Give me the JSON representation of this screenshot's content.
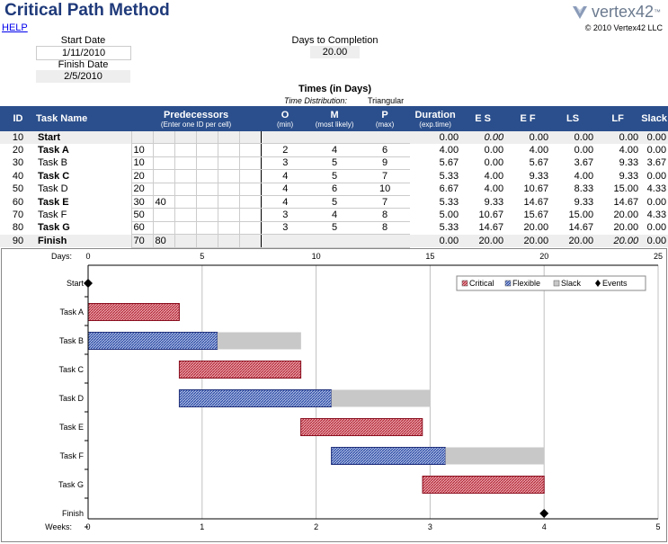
{
  "header": {
    "title": "Critical Path Method",
    "logo_text": "vertex42",
    "logo_tm": "™",
    "help": "HELP",
    "copyright": "© 2010 Vertex42 LLC"
  },
  "inputs": {
    "start_label": "Start Date",
    "start_value": "1/11/2010",
    "finish_label": "Finish Date",
    "finish_value": "2/5/2010",
    "days_label": "Days to Completion",
    "days_value": "20.00"
  },
  "times": {
    "title": "Times (in Days)",
    "dist_label": "Time Distribution:",
    "dist_value": "Triangular"
  },
  "columns": {
    "id": "ID",
    "task": "Task Name",
    "pred": "Predecessors",
    "pred_sub": "(Enter one ID per cell)",
    "o": "O",
    "o_sub": "(min)",
    "m": "M",
    "m_sub": "(most likely)",
    "p": "P",
    "p_sub": "(max)",
    "dur": "Duration",
    "dur_sub": "(exp.time)",
    "es": "E S",
    "ef": "E F",
    "ls": "LS",
    "lf": "LF",
    "slack": "Slack"
  },
  "rows": [
    {
      "id": "10",
      "name": "Start",
      "bold": true,
      "p1": "",
      "p2": "",
      "o": "",
      "m": "",
      "p": "",
      "dur": "0.00",
      "es": "0.00",
      "ef": "0.00",
      "ls": "0.00",
      "lf": "0.00",
      "slack": "0.00"
    },
    {
      "id": "20",
      "name": "Task A",
      "bold": true,
      "p1": "10",
      "p2": "",
      "o": "2",
      "m": "4",
      "p": "6",
      "dur": "4.00",
      "es": "0.00",
      "ef": "4.00",
      "ls": "0.00",
      "lf": "4.00",
      "slack": "0.00"
    },
    {
      "id": "30",
      "name": "Task B",
      "bold": false,
      "p1": "10",
      "p2": "",
      "o": "3",
      "m": "5",
      "p": "9",
      "dur": "5.67",
      "es": "0.00",
      "ef": "5.67",
      "ls": "3.67",
      "lf": "9.33",
      "slack": "3.67"
    },
    {
      "id": "40",
      "name": "Task C",
      "bold": true,
      "p1": "20",
      "p2": "",
      "o": "4",
      "m": "5",
      "p": "7",
      "dur": "5.33",
      "es": "4.00",
      "ef": "9.33",
      "ls": "4.00",
      "lf": "9.33",
      "slack": "0.00"
    },
    {
      "id": "50",
      "name": "Task D",
      "bold": false,
      "p1": "20",
      "p2": "",
      "o": "4",
      "m": "6",
      "p": "10",
      "dur": "6.67",
      "es": "4.00",
      "ef": "10.67",
      "ls": "8.33",
      "lf": "15.00",
      "slack": "4.33"
    },
    {
      "id": "60",
      "name": "Task E",
      "bold": true,
      "p1": "30",
      "p2": "40",
      "o": "4",
      "m": "5",
      "p": "7",
      "dur": "5.33",
      "es": "9.33",
      "ef": "14.67",
      "ls": "9.33",
      "lf": "14.67",
      "slack": "0.00"
    },
    {
      "id": "70",
      "name": "Task F",
      "bold": false,
      "p1": "50",
      "p2": "",
      "o": "3",
      "m": "4",
      "p": "8",
      "dur": "5.00",
      "es": "10.67",
      "ef": "15.67",
      "ls": "15.00",
      "lf": "20.00",
      "slack": "4.33"
    },
    {
      "id": "80",
      "name": "Task G",
      "bold": true,
      "p1": "60",
      "p2": "",
      "o": "3",
      "m": "5",
      "p": "8",
      "dur": "5.33",
      "es": "14.67",
      "ef": "20.00",
      "ls": "14.67",
      "lf": "20.00",
      "slack": "0.00"
    },
    {
      "id": "90",
      "name": "Finish",
      "bold": true,
      "p1": "70",
      "p2": "80",
      "o": "",
      "m": "",
      "p": "",
      "dur": "0.00",
      "es": "20.00",
      "ef": "20.00",
      "ls": "20.00",
      "lf": "20.00",
      "slack": "0.00"
    }
  ],
  "chart_data": {
    "type": "bar",
    "orientation": "horizontal-gantt",
    "days_label": "Days:",
    "weeks_label": "Weeks:",
    "x_days": {
      "min": 0,
      "max": 25,
      "ticks": [
        "0",
        "5",
        "10",
        "15",
        "20",
        "25"
      ]
    },
    "x_weeks": {
      "min": 0,
      "max": 5,
      "ticks": [
        "0",
        "1",
        "2",
        "3",
        "4",
        "5"
      ]
    },
    "grid": true,
    "legend_position": "top-right",
    "legend": [
      "Critical",
      "Flexible",
      "Slack",
      "Events"
    ],
    "colors": {
      "critical": "#c0303a",
      "flexible": "#3a5bb0",
      "slack": "#c8c8c8",
      "event": "#000000"
    },
    "tasks": [
      {
        "name": "Start",
        "kind": "event",
        "at": 0
      },
      {
        "name": "Task A",
        "kind": "critical",
        "start": 0,
        "duration": 4.0,
        "slack": 0
      },
      {
        "name": "Task B",
        "kind": "flexible",
        "start": 0,
        "duration": 5.67,
        "slack": 3.67
      },
      {
        "name": "Task C",
        "kind": "critical",
        "start": 4.0,
        "duration": 5.33,
        "slack": 0
      },
      {
        "name": "Task D",
        "kind": "flexible",
        "start": 4.0,
        "duration": 6.67,
        "slack": 4.33
      },
      {
        "name": "Task E",
        "kind": "critical",
        "start": 9.33,
        "duration": 5.33,
        "slack": 0
      },
      {
        "name": "Task F",
        "kind": "flexible",
        "start": 10.67,
        "duration": 5.0,
        "slack": 4.33
      },
      {
        "name": "Task G",
        "kind": "critical",
        "start": 14.67,
        "duration": 5.33,
        "slack": 0
      },
      {
        "name": "Finish",
        "kind": "event",
        "at": 20.0
      }
    ]
  }
}
